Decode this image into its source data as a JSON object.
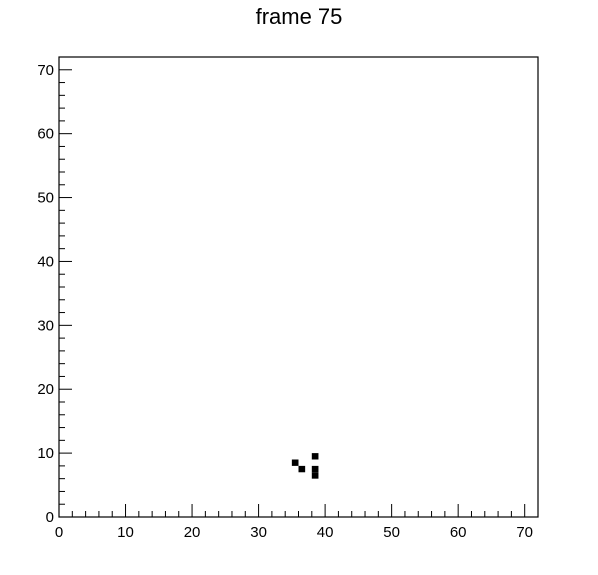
{
  "chart_data": {
    "type": "heatmap",
    "title": "frame 75",
    "xlabel": "",
    "ylabel": "",
    "xlim": [
      0,
      72
    ],
    "ylim": [
      0,
      72
    ],
    "x_ticks": [
      0,
      10,
      20,
      30,
      40,
      50,
      60,
      70
    ],
    "y_ticks": [
      0,
      10,
      20,
      30,
      40,
      50,
      60,
      70
    ],
    "minor_tick_step": 2,
    "grid": false,
    "cell_color": "#000000",
    "cells": [
      {
        "x": 35,
        "y": 8
      },
      {
        "x": 36,
        "y": 7
      },
      {
        "x": 38,
        "y": 9
      },
      {
        "x": 38,
        "y": 7
      },
      {
        "x": 38,
        "y": 6
      }
    ]
  }
}
